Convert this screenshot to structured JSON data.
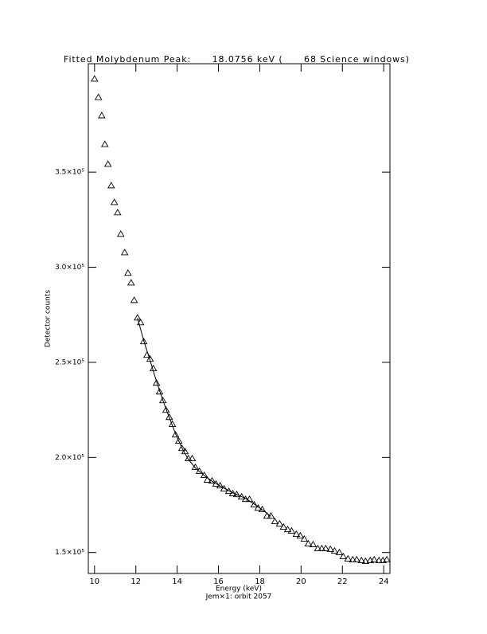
{
  "chart_data": {
    "type": "scatter",
    "title": "Fitted Molybdenum Peak:      18.0756 keV (      68 Science windows)",
    "x_label": "Energy (keV)",
    "subtitle": "Jem×1: orbit 2057",
    "y_label": "Detector counts",
    "xlim": [
      9.7,
      24.3
    ],
    "ylim": [
      139000,
      407000
    ],
    "xticks": [
      10,
      12,
      14,
      16,
      18,
      20,
      22,
      24
    ],
    "yticks": [
      {
        "value": 150000,
        "label": "1.5×10⁵"
      },
      {
        "value": 200000,
        "label": "2.0×10⁵"
      },
      {
        "value": 250000,
        "label": "2.5×10⁵"
      },
      {
        "value": 300000,
        "label": "3.0×10⁵"
      },
      {
        "value": 350000,
        "label": "3.5×10⁵"
      }
    ],
    "grid": false,
    "series": [
      {
        "type": "scatter",
        "marker": "triangle",
        "color": "#000000",
        "x": [
          10.0,
          10.19,
          10.35,
          10.5,
          10.65,
          10.81,
          10.96,
          11.12,
          11.27,
          11.46,
          11.62,
          11.77,
          11.92,
          12.08,
          12.23,
          12.38,
          12.54,
          12.69,
          12.85,
          13.0,
          13.15,
          13.31,
          13.46,
          13.62,
          13.77,
          13.92,
          14.08,
          14.23,
          14.38,
          14.54,
          14.73,
          14.88,
          15.08,
          15.31,
          15.46,
          15.69,
          15.88,
          16.08,
          16.27,
          16.5,
          16.69,
          16.88,
          17.12,
          17.31,
          17.5,
          17.73,
          17.92,
          18.12,
          18.35,
          18.54,
          18.73,
          18.96,
          19.15,
          19.35,
          19.54,
          19.77,
          19.96,
          20.15,
          20.35,
          20.58,
          20.81,
          21.0,
          21.19,
          21.42,
          21.62,
          21.85,
          22.04,
          22.27,
          22.5,
          22.69,
          22.92,
          23.12,
          23.35,
          23.54,
          23.77,
          23.96,
          24.15
        ],
        "values": [
          399000,
          389300,
          379700,
          364600,
          354200,
          342900,
          334100,
          328700,
          317400,
          307700,
          296900,
          291800,
          282600,
          273400,
          270900,
          260900,
          253800,
          251700,
          246700,
          239100,
          234500,
          229900,
          224900,
          221100,
          217400,
          211900,
          208600,
          204800,
          203100,
          199400,
          199400,
          194800,
          192700,
          190600,
          188100,
          187700,
          186000,
          185100,
          183500,
          182200,
          181000,
          180500,
          179300,
          178000,
          178000,
          175100,
          173400,
          172600,
          169200,
          169200,
          166300,
          165100,
          163400,
          162100,
          161300,
          159600,
          158800,
          157100,
          154600,
          154200,
          152100,
          152100,
          152100,
          151700,
          150800,
          150000,
          147900,
          146700,
          146200,
          146200,
          145800,
          145400,
          145800,
          146200,
          145800,
          145800,
          146200
        ]
      },
      {
        "type": "line",
        "color": "#000000",
        "x": [
          12.08,
          12.38,
          12.69,
          13.0,
          13.31,
          13.62,
          13.92,
          14.23,
          14.54,
          14.88,
          15.31,
          15.69,
          16.08,
          16.5,
          16.88,
          17.31,
          17.73,
          18.12,
          18.54
        ],
        "values": [
          273400,
          261500,
          251000,
          240000,
          230000,
          221000,
          212500,
          205000,
          199000,
          194500,
          190500,
          187500,
          185000,
          182500,
          180500,
          178500,
          175500,
          172500,
          169000
        ]
      }
    ]
  }
}
